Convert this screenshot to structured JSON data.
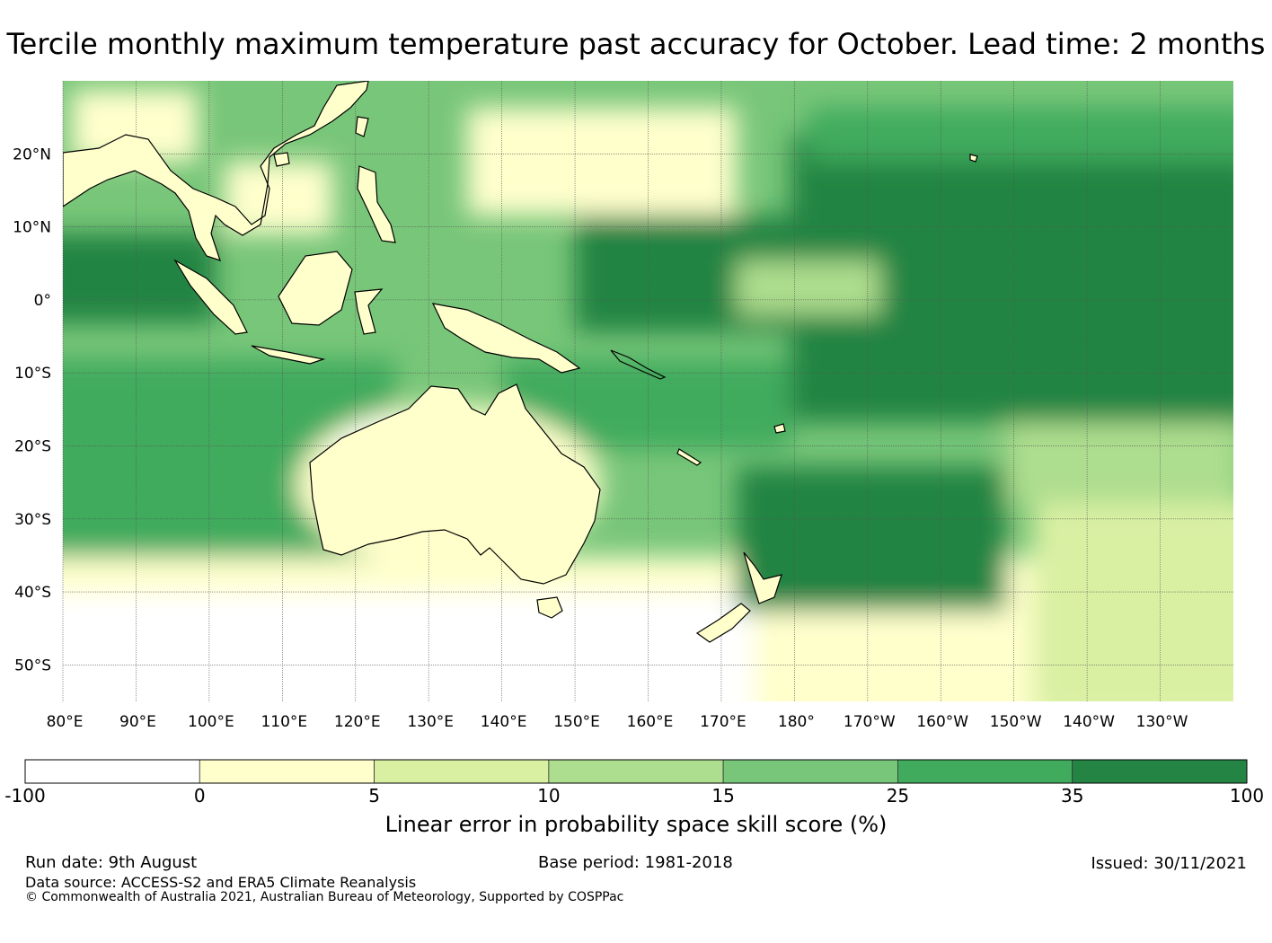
{
  "title": "Tercile monthly maximum temperature past accuracy for October. Lead time: 2 months",
  "map": {
    "lat_labels": [
      "20°N",
      "10°N",
      "0°",
      "10°S",
      "20°S",
      "30°S",
      "40°S",
      "50°S"
    ],
    "lon_labels": [
      "80°E",
      "90°E",
      "100°E",
      "110°E",
      "120°E",
      "130°E",
      "140°E",
      "150°E",
      "160°E",
      "170°E",
      "180°",
      "170°W",
      "160°W",
      "150°W",
      "140°W",
      "130°W"
    ],
    "extent": {
      "lon_min": 80,
      "lon_max": 240,
      "lat_min": -55,
      "lat_max": 30
    }
  },
  "colorbar": {
    "ticks": [
      "-100",
      "0",
      "5",
      "10",
      "15",
      "25",
      "35",
      "100"
    ],
    "colors": [
      "#ffffff",
      "#ffffcc",
      "#d9f0a3",
      "#addd8e",
      "#78c679",
      "#41ab5d",
      "#238443"
    ],
    "label": "Linear error in probability space skill score (%)"
  },
  "footer": {
    "run_date": "Run date: 9th August",
    "base_period": "Base period: 1981-2018",
    "issued": "Issued: 30/11/2021",
    "data_source": "Data source: ACCESS-S2 and ERA5 Climate Reanalysis",
    "copyright": "© Commonwealth of Australia 2021, Australian Bureau of Meteorology, Supported by COSPPac"
  }
}
